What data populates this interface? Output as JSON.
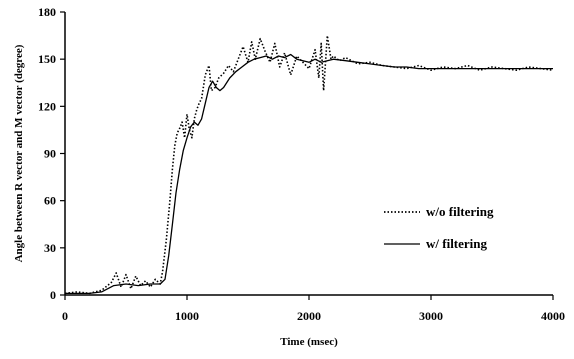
{
  "chart_data": {
    "type": "line",
    "title": "",
    "xlabel": "Time (msec)",
    "ylabel": "Angle between R vector and M vector (degree)",
    "xlim": [
      0,
      4000
    ],
    "ylim": [
      0,
      180
    ],
    "x_ticks": [
      "0",
      "1000",
      "2000",
      "3000",
      "4000"
    ],
    "y_ticks": [
      "0",
      "30",
      "60",
      "90",
      "120",
      "150",
      "180"
    ],
    "grid": false,
    "legend": {
      "placement": "right-center"
    },
    "series": [
      {
        "name": "w/o filtering",
        "style": "dotted",
        "color": "#000000",
        "x": [
          0,
          100,
          200,
          300,
          380,
          420,
          460,
          500,
          540,
          580,
          620,
          660,
          700,
          740,
          780,
          800,
          830,
          860,
          880,
          900,
          920,
          940,
          960,
          980,
          1000,
          1020,
          1040,
          1060,
          1080,
          1100,
          1120,
          1150,
          1180,
          1200,
          1230,
          1260,
          1300,
          1340,
          1380,
          1420,
          1460,
          1500,
          1530,
          1560,
          1600,
          1640,
          1680,
          1720,
          1760,
          1800,
          1850,
          1900,
          1950,
          2000,
          2050,
          2080,
          2100,
          2120,
          2150,
          2180,
          2200,
          2250,
          2300,
          2400,
          2500,
          2600,
          2700,
          2800,
          2900,
          3000,
          3100,
          3200,
          3300,
          3400,
          3500,
          3600,
          3700,
          3800,
          3900,
          4000
        ],
        "y": [
          1,
          2,
          1,
          3,
          8,
          14,
          5,
          13,
          4,
          12,
          6,
          9,
          5,
          10,
          7,
          15,
          35,
          60,
          80,
          95,
          103,
          106,
          110,
          100,
          115,
          105,
          100,
          112,
          118,
          122,
          125,
          140,
          146,
          130,
          132,
          138,
          141,
          146,
          142,
          150,
          158,
          148,
          161,
          150,
          163,
          155,
          148,
          160,
          145,
          154,
          140,
          152,
          148,
          144,
          156,
          138,
          160,
          130,
          165,
          150,
          152,
          149,
          151,
          147,
          148,
          146,
          145,
          144,
          146,
          143,
          145,
          144,
          146,
          143,
          145,
          144,
          143,
          145,
          144,
          143
        ]
      },
      {
        "name": "w/ filtering",
        "style": "solid",
        "color": "#000000",
        "x": [
          0,
          100,
          200,
          300,
          400,
          500,
          600,
          700,
          780,
          820,
          850,
          880,
          910,
          940,
          970,
          1000,
          1030,
          1060,
          1090,
          1120,
          1150,
          1180,
          1210,
          1240,
          1270,
          1300,
          1350,
          1400,
          1450,
          1500,
          1550,
          1600,
          1650,
          1700,
          1750,
          1800,
          1850,
          1900,
          1950,
          2000,
          2050,
          2100,
          2150,
          2200,
          2300,
          2400,
          2500,
          2600,
          2700,
          2800,
          2900,
          3000,
          3200,
          3400,
          3600,
          3800,
          4000
        ],
        "y": [
          1,
          1,
          1,
          2,
          6,
          7,
          6,
          7,
          7,
          10,
          25,
          45,
          65,
          80,
          92,
          100,
          107,
          110,
          108,
          112,
          122,
          132,
          136,
          132,
          130,
          132,
          138,
          142,
          145,
          148,
          150,
          151,
          152,
          150,
          152,
          151,
          153,
          150,
          149,
          148,
          150,
          148,
          149,
          150,
          149,
          148,
          147,
          146,
          145,
          145,
          144,
          144,
          144,
          144,
          144,
          144,
          144
        ]
      }
    ]
  }
}
